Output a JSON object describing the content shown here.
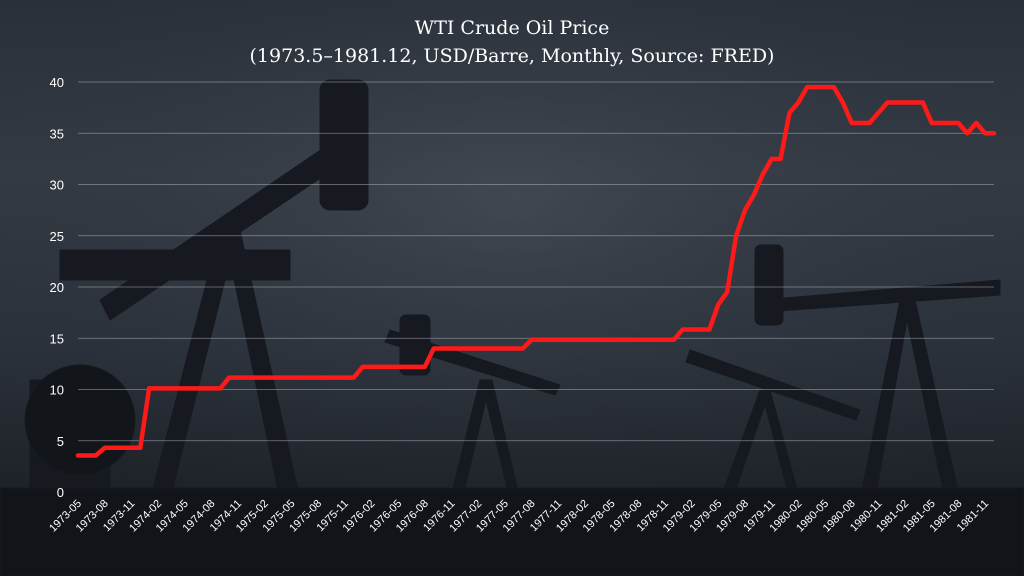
{
  "chart_data": {
    "type": "line",
    "title": "WTI Crude Oil Price",
    "subtitle": "(1973.5–1981.12, USD/Barre, Monthly, Source: FRED)",
    "xlabel": "",
    "ylabel": "",
    "ylim": [
      0,
      40
    ],
    "yticks": [
      0,
      5,
      10,
      15,
      20,
      25,
      30,
      35,
      40
    ],
    "grid": true,
    "line_color": "#ff1a1a",
    "x_tick_labels": [
      "1973-05",
      "1973-08",
      "1973-11",
      "1974-02",
      "1974-05",
      "1974-08",
      "1974-11",
      "1975-02",
      "1975-05",
      "1975-08",
      "1975-11",
      "1976-02",
      "1976-05",
      "1976-08",
      "1976-11",
      "1977-02",
      "1977-05",
      "1977-08",
      "1977-11",
      "1978-02",
      "1978-05",
      "1978-08",
      "1978-11",
      "1979-02",
      "1979-05",
      "1979-08",
      "1979-11",
      "1980-02",
      "1980-05",
      "1980-08",
      "1980-11",
      "1981-02",
      "1981-05",
      "1981-08",
      "1981-11"
    ],
    "series": [
      {
        "x": [
          "1973-05",
          "1973-06",
          "1973-07",
          "1973-08",
          "1973-09",
          "1973-10",
          "1973-11",
          "1973-12",
          "1974-01",
          "1974-02",
          "1974-03",
          "1974-04",
          "1974-05",
          "1974-06",
          "1974-07",
          "1974-08",
          "1974-09",
          "1974-10",
          "1974-11",
          "1974-12",
          "1975-01",
          "1975-02",
          "1975-03",
          "1975-04",
          "1975-05",
          "1975-06",
          "1975-07",
          "1975-08",
          "1975-09",
          "1975-10",
          "1975-11",
          "1975-12",
          "1976-01",
          "1976-02",
          "1976-03",
          "1976-04",
          "1976-05",
          "1976-06",
          "1976-07",
          "1976-08",
          "1976-09",
          "1976-10",
          "1976-11",
          "1976-12",
          "1977-01",
          "1977-02",
          "1977-03",
          "1977-04",
          "1977-05",
          "1977-06",
          "1977-07",
          "1977-08",
          "1977-09",
          "1977-10",
          "1977-11",
          "1977-12",
          "1978-01",
          "1978-02",
          "1978-03",
          "1978-04",
          "1978-05",
          "1978-06",
          "1978-07",
          "1978-08",
          "1978-09",
          "1978-10",
          "1978-11",
          "1978-12",
          "1979-01",
          "1979-02",
          "1979-03",
          "1979-04",
          "1979-05",
          "1979-06",
          "1979-07",
          "1979-08",
          "1979-09",
          "1979-10",
          "1979-11",
          "1979-12",
          "1980-01",
          "1980-02",
          "1980-03",
          "1980-04",
          "1980-05",
          "1980-06",
          "1980-07",
          "1980-08",
          "1980-09",
          "1980-10",
          "1980-11",
          "1980-12",
          "1981-01",
          "1981-02",
          "1981-03",
          "1981-04",
          "1981-05",
          "1981-06",
          "1981-07",
          "1981-08",
          "1981-09",
          "1981-10",
          "1981-11",
          "1981-12"
        ],
        "values": [
          3.56,
          3.56,
          3.56,
          4.31,
          4.31,
          4.31,
          4.31,
          4.31,
          10.11,
          10.11,
          10.11,
          10.11,
          10.11,
          10.11,
          10.11,
          10.11,
          10.11,
          11.16,
          11.16,
          11.16,
          11.16,
          11.16,
          11.16,
          11.16,
          11.16,
          11.16,
          11.16,
          11.16,
          11.16,
          11.16,
          11.16,
          11.16,
          12.2,
          12.2,
          12.2,
          12.2,
          12.2,
          12.2,
          12.2,
          12.2,
          14.0,
          14.0,
          14.0,
          14.0,
          14.0,
          14.0,
          14.0,
          14.0,
          14.0,
          14.0,
          14.0,
          14.85,
          14.85,
          14.85,
          14.85,
          14.85,
          14.85,
          14.85,
          14.85,
          14.85,
          14.85,
          14.85,
          14.85,
          14.85,
          14.85,
          14.85,
          14.85,
          14.85,
          15.85,
          15.85,
          15.85,
          15.85,
          18.3,
          19.5,
          25.0,
          27.5,
          29.0,
          31.0,
          32.5,
          32.5,
          37.0,
          38.0,
          39.5,
          39.5,
          39.5,
          39.5,
          38.0,
          36.0,
          36.0,
          36.0,
          37.0,
          38.0,
          38.0,
          38.0,
          38.0,
          38.0,
          36.0,
          36.0,
          36.0,
          36.0,
          35.0,
          36.0,
          35.0,
          35.0
        ]
      }
    ]
  }
}
